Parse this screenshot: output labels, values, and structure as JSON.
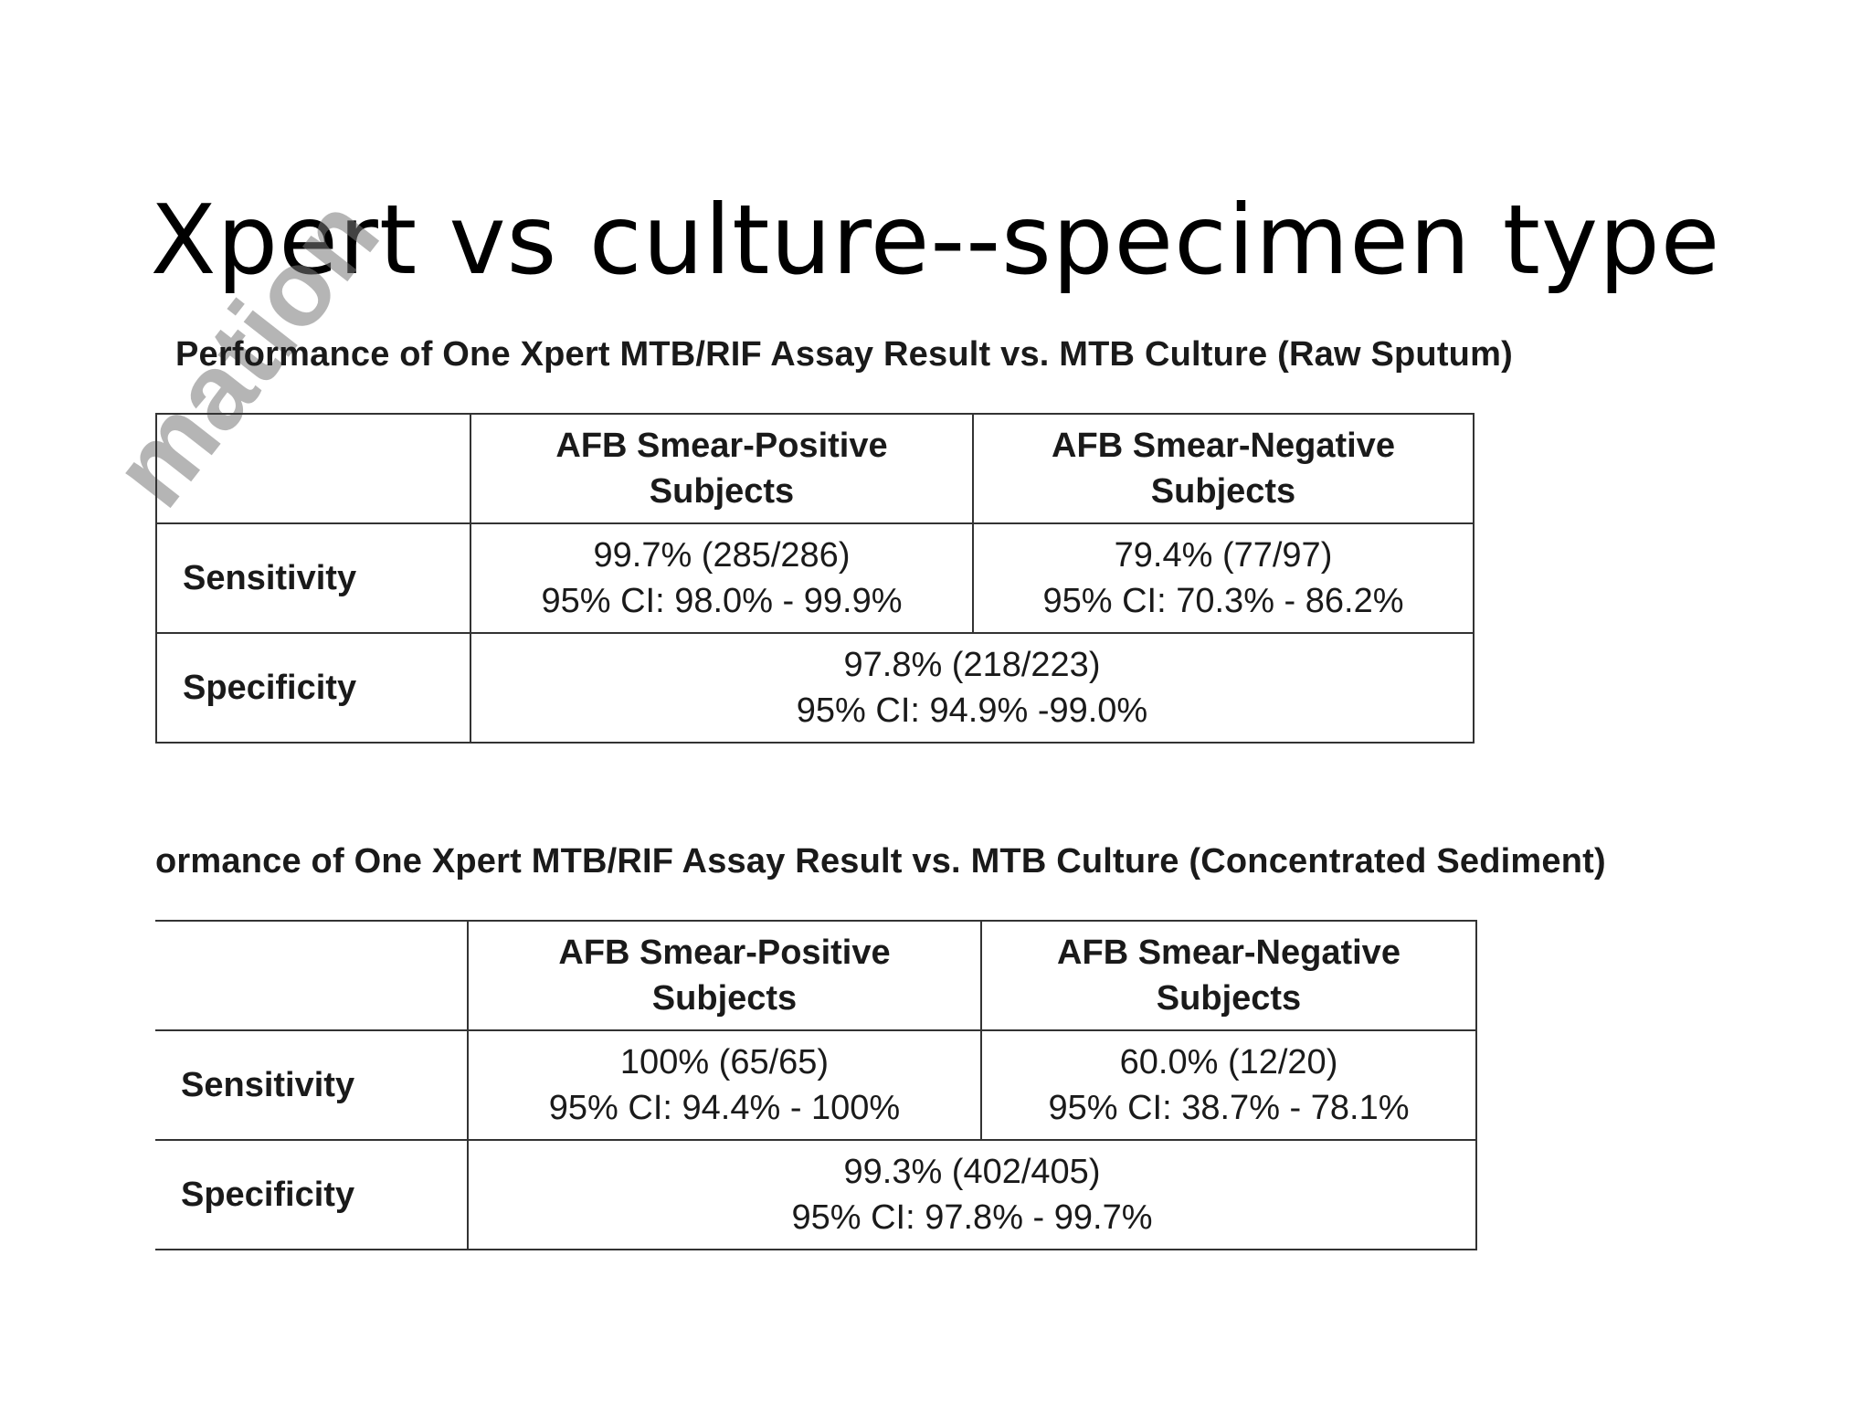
{
  "slide": {
    "title": "Xpert vs culture--specimen type"
  },
  "watermark": {
    "text": "mation"
  },
  "tables": [
    {
      "caption": "Performance of One Xpert MTB/RIF Assay Result vs. MTB Culture (Raw Sputum)",
      "columns": [
        {
          "line1": "AFB Smear-Positive",
          "line2": "Subjects"
        },
        {
          "line1": "AFB Smear-Negative",
          "line2": "Subjects"
        }
      ],
      "rows": {
        "sensitivity": {
          "label": "Sensitivity",
          "positive": {
            "line1": "99.7% (285/286)",
            "line2": "95% CI: 98.0% - 99.9%"
          },
          "negative": {
            "line1": "79.4% (77/97)",
            "line2": "95% CI: 70.3% - 86.2%"
          }
        },
        "specificity": {
          "label": "Specificity",
          "combined": {
            "line1": "97.8% (218/223)",
            "line2": "95% CI: 94.9% -99.0%"
          }
        }
      }
    },
    {
      "caption": "ormance of One Xpert MTB/RIF Assay Result vs. MTB Culture (Concentrated Sediment)",
      "columns": [
        {
          "line1": "AFB Smear-Positive",
          "line2": "Subjects"
        },
        {
          "line1": "AFB Smear-Negative",
          "line2": "Subjects"
        }
      ],
      "rows": {
        "sensitivity": {
          "label": "Sensitivity",
          "positive": {
            "line1": "100% (65/65)",
            "line2": "95% CI: 94.4% - 100%"
          },
          "negative": {
            "line1": "60.0% (12/20)",
            "line2": "95% CI: 38.7% - 78.1%"
          }
        },
        "specificity": {
          "label": "Specificity",
          "combined": {
            "line1": "99.3% (402/405)",
            "line2": "95% CI: 97.8% - 99.7%"
          }
        }
      }
    }
  ]
}
